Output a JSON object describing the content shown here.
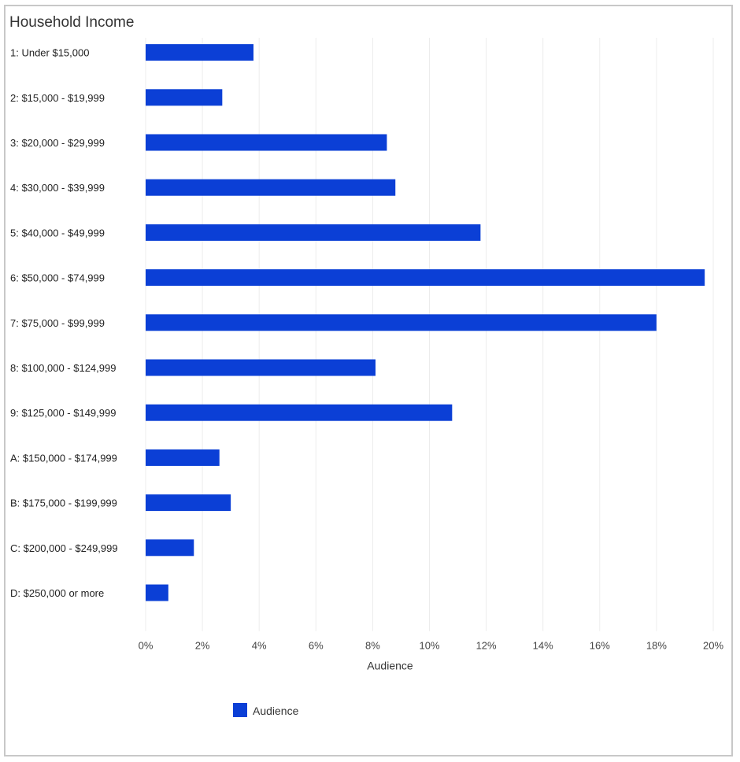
{
  "chart_data": {
    "type": "bar",
    "orientation": "horizontal",
    "title": "Household Income",
    "xlabel": "Audience",
    "ylabel": "",
    "xlim": [
      0,
      20
    ],
    "x_ticks": [
      "0%",
      "2%",
      "4%",
      "6%",
      "8%",
      "10%",
      "12%",
      "14%",
      "16%",
      "18%",
      "20%"
    ],
    "grid": true,
    "legend_position": "bottom",
    "categories": [
      "1: Under $15,000",
      "2: $15,000 - $19,999",
      "3: $20,000 - $29,999",
      "4: $30,000 - $39,999",
      "5: $40,000 - $49,999",
      "6: $50,000 - $74,999",
      "7: $75,000 - $99,999",
      "8: $100,000 - $124,999",
      "9: $125,000 - $149,999",
      "A: $150,000 - $174,999",
      "B: $175,000 - $199,999",
      "C: $200,000 - $249,999",
      "D: $250,000 or more"
    ],
    "series": [
      {
        "name": "Audience",
        "color": "#0b3fd6",
        "values": [
          3.8,
          2.7,
          8.5,
          8.8,
          11.8,
          19.7,
          18.0,
          8.1,
          10.8,
          2.6,
          3.0,
          1.7,
          0.8
        ]
      }
    ]
  }
}
